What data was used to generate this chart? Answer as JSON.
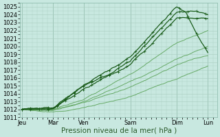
{
  "background_color": "#c8e8e0",
  "plot_bg_color": "#c8e8e0",
  "grid_color": "#a8ccbf",
  "dark_color": "#1a5c1a",
  "light_color": "#66aa66",
  "xlabel": "Pression niveau de la mer( hPa )",
  "ylim": [
    1011,
    1025.5
  ],
  "yticks": [
    1011,
    1012,
    1013,
    1014,
    1015,
    1016,
    1017,
    1018,
    1019,
    1020,
    1021,
    1022,
    1023,
    1024,
    1025
  ],
  "xtick_labels": [
    "Jeu",
    "Mar",
    "Ven",
    "Sam",
    "Dim",
    "Lun"
  ],
  "xtick_positions": [
    0.0,
    1.0,
    2.0,
    3.5,
    5.0,
    6.0
  ],
  "xlim": [
    -0.05,
    6.3
  ],
  "label_fontsize": 7.5,
  "tick_fontsize": 6.0
}
